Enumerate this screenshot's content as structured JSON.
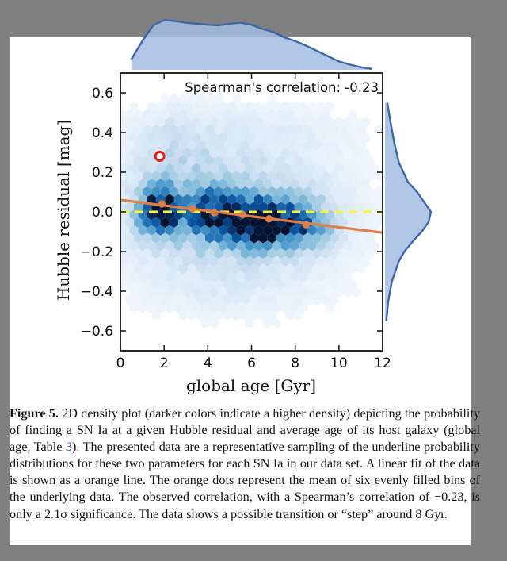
{
  "page_colors": {
    "surround": "#808080",
    "paper": "#ffffff",
    "hex_palette": "Blues",
    "fit_line": "#e07f45",
    "mean_dots": "#e07f45",
    "outlier_ring": "#e0211a",
    "zero_line": "#f5f53a",
    "marginal_fill": "#a5bde0",
    "marginal_line": "#3a67a8"
  },
  "chart_data": {
    "type": "heatmap",
    "subtype": "2D hexbin density with marginal distributions",
    "title": "",
    "annotation": "Spearman's correlation: -0.23",
    "xlabel": "global age [Gyr]",
    "ylabel": "Hubble residual [mag]",
    "xlim": [
      0,
      12
    ],
    "ylim": [
      -0.7,
      0.7
    ],
    "xticks": [
      0,
      2,
      4,
      6,
      8,
      10,
      12
    ],
    "xtick_labels": [
      "0",
      "2",
      "4",
      "6",
      "8",
      "10",
      "12"
    ],
    "yticks": [
      0.6,
      0.4,
      0.2,
      0.0,
      -0.2,
      -0.4,
      -0.6
    ],
    "ytick_labels": [
      "0.6",
      "0.4",
      "0.2",
      "0.0",
      "−0.2",
      "−0.4",
      "−0.6"
    ],
    "grid": false,
    "linear_fit": {
      "x": [
        0,
        12
      ],
      "y": [
        0.06,
        -0.105
      ]
    },
    "zero_line": {
      "y": 0.0,
      "style": "dashed"
    },
    "bin_means": {
      "x": [
        1.9,
        3.3,
        4.3,
        5.6,
        6.8,
        8.5
      ],
      "y": [
        0.04,
        0.015,
        -0.005,
        -0.015,
        -0.035,
        -0.065
      ]
    },
    "highlighted_point": {
      "x": 1.8,
      "y": 0.28
    },
    "density_clusters": [
      {
        "x": 1.8,
        "y": 0.0,
        "weight": 1.0,
        "sx": 0.6,
        "sy": 0.08
      },
      {
        "x": 4.3,
        "y": -0.02,
        "weight": 0.65,
        "sx": 0.9,
        "sy": 0.09
      },
      {
        "x": 6.4,
        "y": -0.06,
        "weight": 0.95,
        "sx": 0.8,
        "sy": 0.08
      },
      {
        "x": 8.3,
        "y": -0.06,
        "weight": 0.55,
        "sx": 0.9,
        "sy": 0.08
      },
      {
        "x": 5.0,
        "y": 0.0,
        "weight": 0.35,
        "sx": 3.5,
        "sy": 0.2
      },
      {
        "x": 2.5,
        "y": 0.3,
        "weight": 0.12,
        "sx": 1.3,
        "sy": 0.15
      },
      {
        "x": 6.0,
        "y": 0.42,
        "weight": 0.08,
        "sx": 4.0,
        "sy": 0.1
      },
      {
        "x": 5.0,
        "y": -0.4,
        "weight": 0.07,
        "sx": 3.5,
        "sy": 0.12
      }
    ],
    "marginal_x": {
      "x": [
        0.5,
        1.0,
        1.5,
        2.0,
        2.5,
        3.0,
        3.5,
        4.0,
        4.5,
        5.0,
        5.5,
        6.0,
        6.5,
        7.0,
        7.5,
        8.0,
        8.5,
        9.0,
        9.5,
        10.0,
        10.5,
        11.0,
        11.5
      ],
      "density": [
        0.2,
        0.55,
        0.85,
        0.95,
        0.93,
        0.9,
        0.88,
        0.86,
        0.85,
        0.88,
        0.9,
        0.86,
        0.78,
        0.72,
        0.62,
        0.55,
        0.46,
        0.36,
        0.26,
        0.16,
        0.1,
        0.05,
        0.02
      ]
    },
    "marginal_y": {
      "y": [
        0.55,
        0.45,
        0.35,
        0.25,
        0.15,
        0.1,
        0.05,
        0.0,
        -0.05,
        -0.1,
        -0.15,
        -0.2,
        -0.25,
        -0.35,
        -0.45,
        -0.55
      ],
      "density": [
        0.05,
        0.12,
        0.2,
        0.3,
        0.5,
        0.7,
        0.85,
        1.0,
        0.95,
        0.8,
        0.6,
        0.42,
        0.3,
        0.15,
        0.07,
        0.03
      ]
    }
  },
  "caption": {
    "label": "Figure 5.",
    "text_1": " 2D density plot (darker colors indicate a higher density) depicting the probability of finding a SN Ia at a given Hubble residual and average age of its host galaxy (global age, Table ",
    "ref": "3",
    "text_2": "). The presented data are a representative sampling of the underline probability distributions for these two parameters for each SN Ia in our data set. A linear fit of the data is shown as a orange line. The orange dots represent the mean of six evenly filled bins of the underlying data. The observed correlation, with a Spearman’s correlation of −0.23, is only a 2.1σ significance. The data shows a possible transition or “step” around 8 Gyr."
  }
}
